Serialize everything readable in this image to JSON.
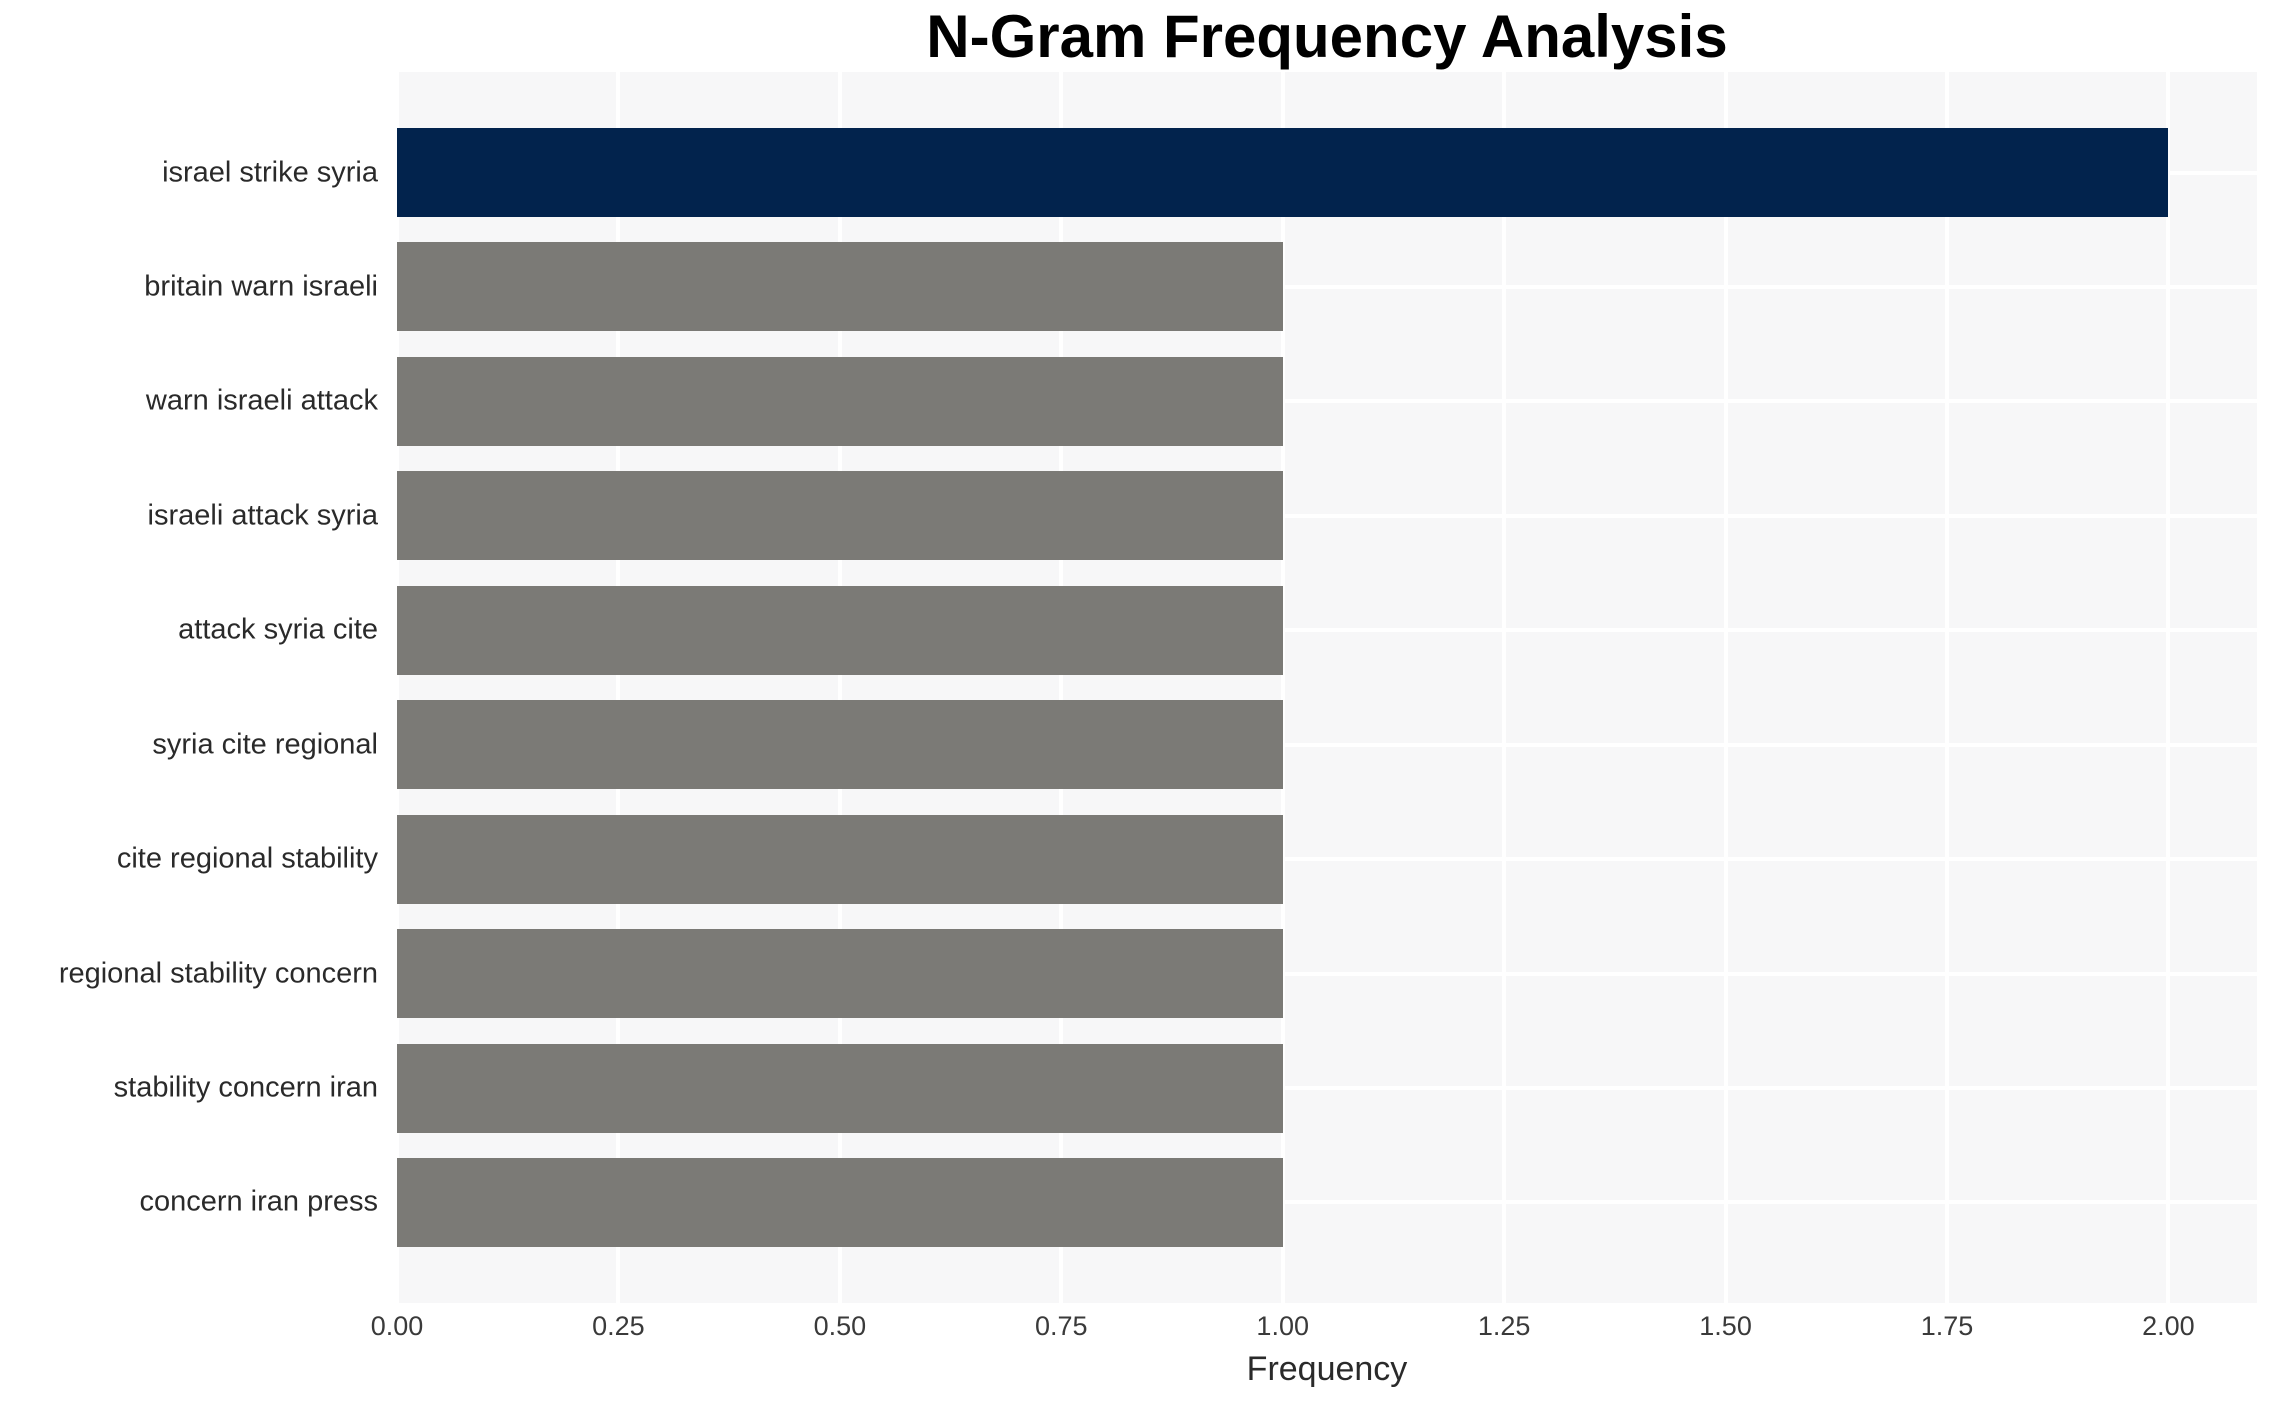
{
  "chart_data": {
    "type": "bar",
    "orientation": "horizontal",
    "title": "N-Gram Frequency Analysis",
    "xlabel": "Frequency",
    "ylabel": "",
    "categories": [
      "israel strike syria",
      "britain warn israeli",
      "warn israeli attack",
      "israeli attack syria",
      "attack syria cite",
      "syria cite regional",
      "cite regional stability",
      "regional stability concern",
      "stability concern iran",
      "concern iran press"
    ],
    "values": [
      2.0,
      1.0,
      1.0,
      1.0,
      1.0,
      1.0,
      1.0,
      1.0,
      1.0,
      1.0
    ],
    "bar_colors": [
      "#02234d",
      "#7b7a76",
      "#7b7a76",
      "#7b7a76",
      "#7b7a76",
      "#7b7a76",
      "#7b7a76",
      "#7b7a76",
      "#7b7a76",
      "#7b7a76"
    ],
    "x_tick_labels": [
      "0.00",
      "0.25",
      "0.50",
      "0.75",
      "1.00",
      "1.25",
      "1.50",
      "1.75",
      "2.00"
    ],
    "x_tick_values": [
      0.0,
      0.25,
      0.5,
      0.75,
      1.0,
      1.25,
      1.5,
      1.75,
      2.0
    ],
    "xlim": [
      0.0,
      2.1
    ],
    "grid": true,
    "legend": false,
    "colors": {
      "highlight_bar": "#02234d",
      "default_bar": "#7b7a76",
      "plot_background": "#f7f7f8",
      "gridline": "#ffffff",
      "title_text": "#000000",
      "axis_text": "#2a2a2a",
      "page_background": "#ffffff"
    }
  }
}
